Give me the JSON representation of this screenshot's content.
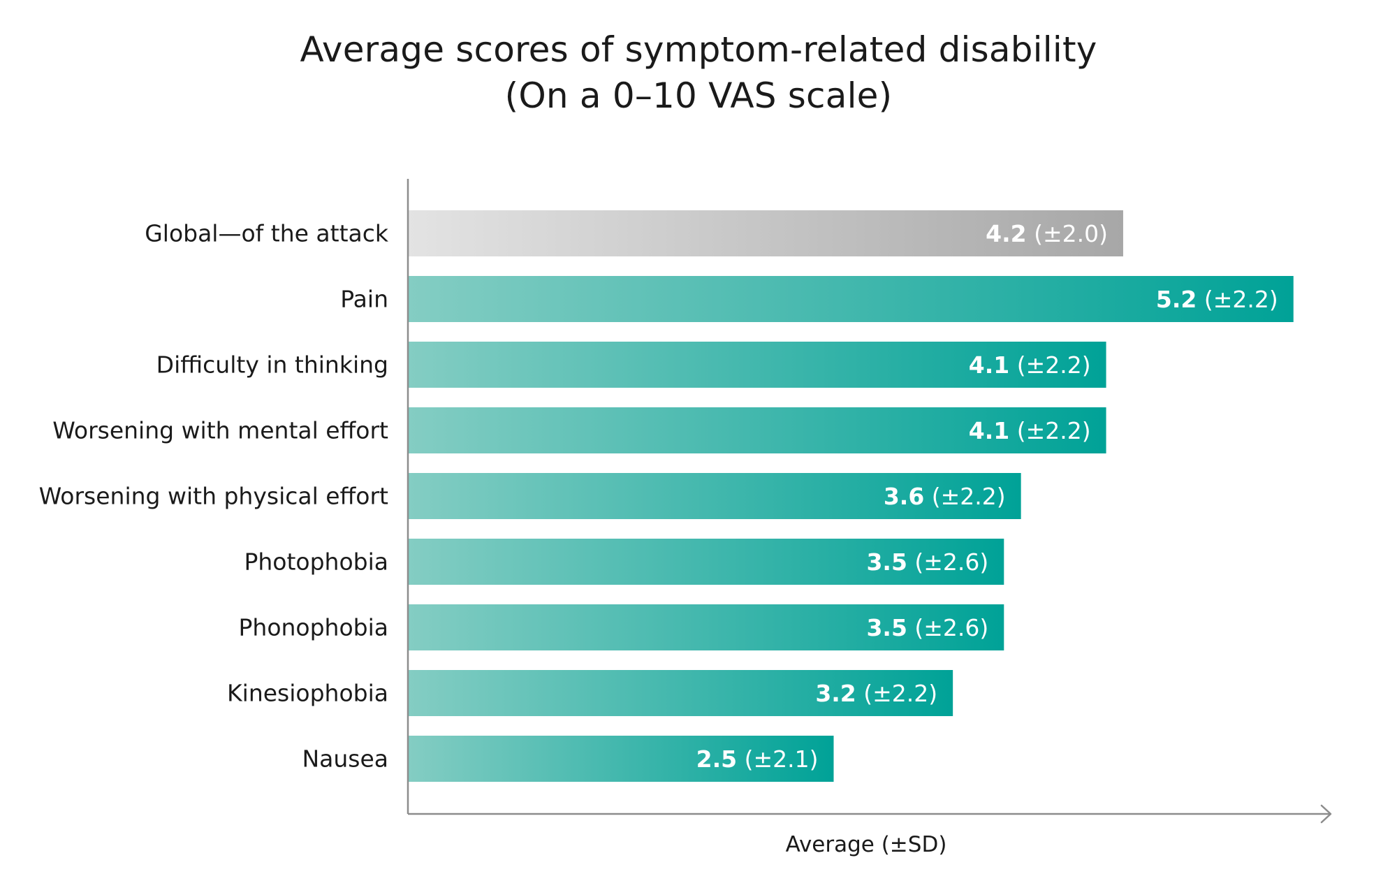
{
  "chart_data": {
    "type": "bar",
    "orientation": "horizontal",
    "title": "Average scores of symptom-related disability",
    "subtitle": "(On a 0–10 VAS scale)",
    "xlabel": "Average (±SD)",
    "ylabel": "",
    "xlim": [
      0,
      6.2
    ],
    "grid": false,
    "categories": [
      "Global—of the attack",
      "Pain",
      "Difficulty in thinking",
      "Worsening with mental effort",
      "Worsening with physical effort",
      "Photophobia",
      "Phonophobia",
      "Kinesiophobia",
      "Nausea"
    ],
    "values": [
      4.2,
      5.2,
      4.1,
      4.1,
      3.6,
      3.5,
      3.5,
      3.2,
      2.5
    ],
    "value_labels": [
      "4.2",
      "5.2",
      "4.1",
      "4.1",
      "3.6",
      "3.5",
      "3.5",
      "3.2",
      "2.5"
    ],
    "sd_labels": [
      "(±2.0)",
      "(±2.2)",
      "(±2.2)",
      "(±2.2)",
      "(±2.2)",
      "(±2.6)",
      "(±2.6)",
      "(±2.2)",
      "(±2.1)"
    ],
    "bar_styles": [
      "grey",
      "teal",
      "teal",
      "teal",
      "teal",
      "teal",
      "teal",
      "teal",
      "teal"
    ],
    "colors": {
      "grey_start": "#e3e3e3",
      "grey_end": "#a7a7a7",
      "teal_start": "#84cdc3",
      "teal_end": "#00a297",
      "axis": "#8c8c8c",
      "label_text": "#1a1a1a",
      "value_text": "#ffffff"
    }
  }
}
